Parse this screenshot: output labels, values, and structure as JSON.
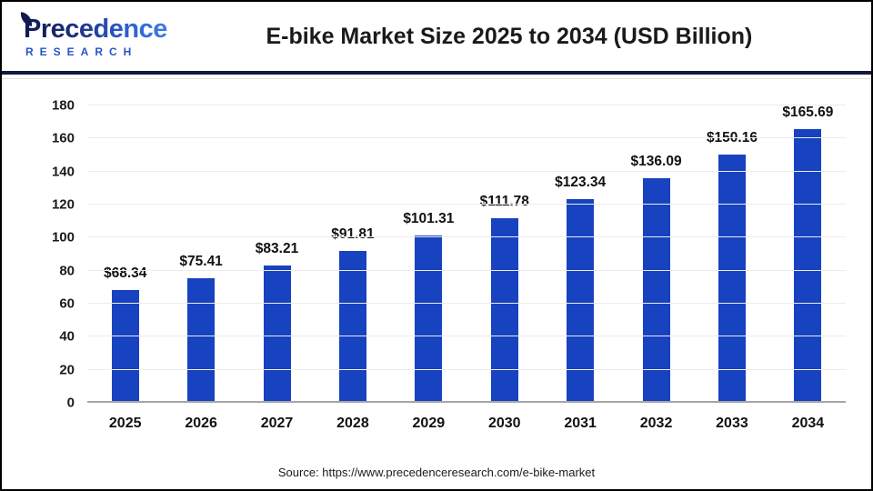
{
  "header": {
    "logo": {
      "brand": "Precedence",
      "sub": "RESEARCH"
    },
    "title": "E-bike Market Size 2025 to 2034 (USD Billion)"
  },
  "chart_data": {
    "type": "bar",
    "title": "E-bike Market Size 2025 to 2034 (USD Billion)",
    "categories": [
      "2025",
      "2026",
      "2027",
      "2028",
      "2029",
      "2030",
      "2031",
      "2032",
      "2033",
      "2034"
    ],
    "values": [
      68.34,
      75.41,
      83.21,
      91.81,
      101.31,
      111.78,
      123.34,
      136.09,
      150.16,
      165.69
    ],
    "data_labels": [
      "$68.34",
      "$75.41",
      "$83.21",
      "$91.81",
      "$101.31",
      "$111.78",
      "$123.34",
      "$136.09",
      "$150.16",
      "$165.69"
    ],
    "unit": "USD Billion",
    "xlabel": "",
    "ylabel": "",
    "ylim": [
      0,
      180
    ],
    "yticks": [
      0,
      20,
      40,
      60,
      80,
      100,
      120,
      140,
      160,
      180
    ],
    "grid": true,
    "legend": "none",
    "bar_color": "#1742c0"
  },
  "footer": {
    "source": "Source: https://www.precedenceresearch.com/e-bike-market"
  },
  "colors": {
    "accent_bar": "#1742c0",
    "header_rule": "#101740",
    "gridline": "#ececec",
    "axis_baseline": "#a6a6a6",
    "text": "#1a1a1a",
    "logo_blue": "#2456c7"
  }
}
